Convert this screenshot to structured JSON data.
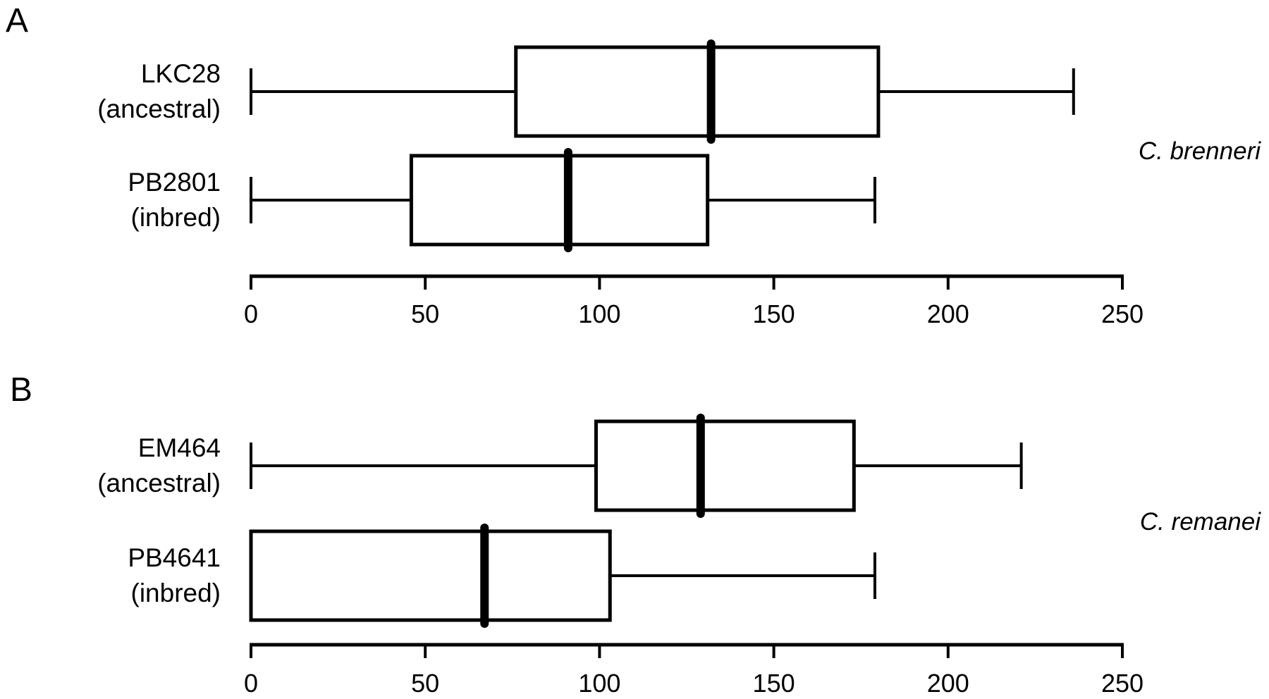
{
  "panels": [
    {
      "panel_label": "A",
      "species_label": "C. brenneri",
      "rows": [
        {
          "strain": "LKC28",
          "qualifier": "(ancestral)",
          "stats": {
            "whisker_low": 0,
            "q1": 76,
            "median": 132,
            "q3": 180,
            "whisker_high": 236
          }
        },
        {
          "strain": "PB2801",
          "qualifier": "(inbred)",
          "stats": {
            "whisker_low": 0,
            "q1": 46,
            "median": 91,
            "q3": 131,
            "whisker_high": 179
          }
        }
      ],
      "axis": {
        "min": 0,
        "max": 250,
        "ticks": [
          "0",
          "50",
          "100",
          "150",
          "200",
          "250"
        ]
      }
    },
    {
      "panel_label": "B",
      "species_label": "C. remanei",
      "rows": [
        {
          "strain": "EM464",
          "qualifier": "(ancestral)",
          "stats": {
            "whisker_low": 0,
            "q1": 99,
            "median": 129,
            "q3": 173,
            "whisker_high": 221
          }
        },
        {
          "strain": "PB4641",
          "qualifier": "(inbred)",
          "stats": {
            "whisker_low": 0,
            "q1": 0,
            "median": 67,
            "q3": 103,
            "whisker_high": 179
          }
        }
      ],
      "axis": {
        "min": 0,
        "max": 250,
        "ticks": [
          "0",
          "50",
          "100",
          "150",
          "200",
          "250"
        ]
      }
    }
  ],
  "chart_data": [
    {
      "type": "boxplot",
      "orientation": "horizontal",
      "panel": "A",
      "title": "",
      "group_label": "C. brenneri",
      "categories": [
        "LKC28 (ancestral)",
        "PB2801 (inbred)"
      ],
      "series": [
        {
          "name": "LKC28 (ancestral)",
          "whisker_low": 0,
          "q1": 76,
          "median": 132,
          "q3": 180,
          "whisker_high": 236
        },
        {
          "name": "PB2801 (inbred)",
          "whisker_low": 0,
          "q1": 46,
          "median": 91,
          "q3": 131,
          "whisker_high": 179
        }
      ],
      "xlabel": "",
      "ylabel": "",
      "xlim": [
        0,
        250
      ],
      "xticks": [
        0,
        50,
        100,
        150,
        200,
        250
      ],
      "grid": false,
      "legend": false
    },
    {
      "type": "boxplot",
      "orientation": "horizontal",
      "panel": "B",
      "title": "",
      "group_label": "C. remanei",
      "categories": [
        "EM464 (ancestral)",
        "PB4641 (inbred)"
      ],
      "series": [
        {
          "name": "EM464 (ancestral)",
          "whisker_low": 0,
          "q1": 99,
          "median": 129,
          "q3": 173,
          "whisker_high": 221
        },
        {
          "name": "PB4641 (inbred)",
          "whisker_low": 0,
          "q1": 0,
          "median": 67,
          "q3": 103,
          "whisker_high": 179
        }
      ],
      "xlabel": "",
      "ylabel": "",
      "xlim": [
        0,
        250
      ],
      "xticks": [
        0,
        50,
        100,
        150,
        200,
        250
      ],
      "grid": false,
      "legend": false
    }
  ]
}
